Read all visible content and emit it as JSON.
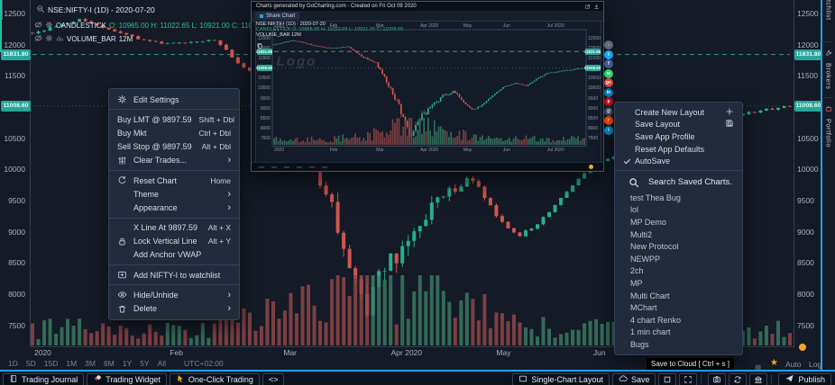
{
  "colors": {
    "accent": "#1e9fe8",
    "green": "#2fbf8f",
    "red": "#d05750",
    "badge_green": "#26a69a",
    "teal_sliver": "#17c3a0",
    "orange": "#f5a623"
  },
  "legend": {
    "title": "NSE:NIFTY-I (1D) - 2020-07-20",
    "series": "CANDLESTICK",
    "ohlc": [
      {
        "k": "O:",
        "v": "10965.00"
      },
      {
        "k": "H:",
        "v": "11022.65"
      },
      {
        "k": "L:",
        "v": "10921.00"
      },
      {
        "k": "C:",
        "v": "11008.60"
      }
    ],
    "volume_label": "VOLUME_BAR",
    "volume_value": "12M"
  },
  "context_menu": {
    "sections": [
      [
        {
          "icon": "gear",
          "label": "Edit Settings"
        }
      ],
      [
        {
          "label": "Buy LMT @ 9897.59",
          "shortcut": "Shift + Dbl"
        },
        {
          "label": "Buy Mkt",
          "shortcut": "Ctrl + Dbl"
        },
        {
          "label": "Sell Stop @ 9897.59",
          "shortcut": "Alt + Dbl"
        },
        {
          "icon": "sliders",
          "label": "Clear Trades...",
          "submenu": true
        }
      ],
      [
        {
          "icon": "refresh",
          "label": "Reset Chart",
          "shortcut": "Home"
        },
        {
          "label": "Theme",
          "submenu": true,
          "indent": true
        },
        {
          "label": "Appearance",
          "submenu": true,
          "indent": true
        }
      ],
      [
        {
          "label": "X Line At 9897.59",
          "shortcut": "Alt + X",
          "indent": true
        },
        {
          "icon": "lock",
          "label": "Lock Vertical Line",
          "shortcut": "Alt + Y"
        },
        {
          "label": "Add Anchor VWAP",
          "indent": true
        }
      ],
      [
        {
          "icon": "card-plus",
          "label": "Add NIFTY-I to watchlist"
        }
      ],
      [
        {
          "icon": "eye",
          "label": "Hide/Unhide",
          "submenu": true
        },
        {
          "icon": "trash",
          "label": "Delete",
          "submenu": true
        }
      ]
    ]
  },
  "layout_menu": {
    "items": [
      {
        "label": "Create New Layout",
        "right_icon": "plus"
      },
      {
        "label": "Save Layout",
        "right_icon": "floppy"
      },
      {
        "label": "Save App Profile"
      },
      {
        "label": "Reset App Defaults"
      },
      {
        "label": "AutoSave",
        "left_icon": "check"
      }
    ],
    "search_label": "Search Saved Charts.",
    "saved_charts": [
      "test Thea Bug",
      "lol",
      "MP Demo",
      "Multi2",
      "New Protocol",
      "NEWPP",
      "2ch",
      "MP",
      "Multi Chart",
      "MChart",
      "4 chart Renko",
      "1 min chart",
      "Bugs"
    ]
  },
  "tooltip": "Save to Cloud [ Ctrl + s ]",
  "popup": {
    "header": "Charts generated by GoCharting.com - Created on Fri Oct 09 2020",
    "tab": "Share Chart",
    "legend_title": "NSE:NIFTY-I (1D) - 2020-07-20",
    "legend_series": "CANDLESTICK O: 10965.00 H: 11022.65 L: 10921.00 C: 11008.60",
    "legend_volume": "VOLUME_BAR 12M",
    "watermark": "Logo"
  },
  "share_icons": [
    {
      "name": "download",
      "color": "#5c6b7a",
      "glyph": "↓"
    },
    {
      "name": "twitter",
      "color": "#1da1f2",
      "glyph": "t"
    },
    {
      "name": "facebook",
      "color": "#3b5998",
      "glyph": "f"
    },
    {
      "name": "whatsapp",
      "color": "#25d366",
      "glyph": "w"
    },
    {
      "name": "google-plus",
      "color": "#db4437",
      "glyph": "g+"
    },
    {
      "name": "linkedin",
      "color": "#0077b5",
      "glyph": "in"
    },
    {
      "name": "pinterest",
      "color": "#bd081c",
      "glyph": "p"
    },
    {
      "name": "email",
      "color": "#35465c",
      "glyph": "@"
    },
    {
      "name": "reddit",
      "color": "#ff4500",
      "glyph": "r"
    },
    {
      "name": "telegram",
      "color": "#0088cc",
      "glyph": "t"
    }
  ],
  "timeframes": {
    "items": [
      "1D",
      "5D",
      "15D",
      "1M",
      "3M",
      "6M",
      "1Y",
      "5Y",
      "All"
    ],
    "timezone": "UTC+02:00",
    "auto_label": "Auto",
    "log_label": "Log"
  },
  "bottom_bar": {
    "left_buttons": [
      {
        "label": "Trading Journal",
        "icon": "journal"
      },
      {
        "label": "Trading Widget",
        "icon": "rocket"
      },
      {
        "label": "One-Click Trading",
        "icon": "pointer"
      },
      {
        "label": "<>",
        "icon": null
      }
    ],
    "right_buttons": [
      {
        "label": "Single-Chart Layout",
        "icon": "layout"
      },
      {
        "label": "Save",
        "icon": "cloud"
      }
    ],
    "icon_buttons": [
      "square",
      "expand",
      "camera",
      "sync",
      "bank"
    ],
    "publish_label": "Publish"
  },
  "sidebar_tabs": [
    {
      "label": "Watchlist",
      "icon": "list"
    },
    {
      "label": "Brokers",
      "icon": "wrench"
    },
    {
      "label": "Portfolio",
      "icon": "briefcase"
    }
  ],
  "chart_data": {
    "type": "candlestick",
    "symbol": "NSE:NIFTY-I",
    "interval": "1D",
    "last_ohlc": {
      "open": 10965.0,
      "high": 11022.65,
      "low": 10921.0,
      "close": 11008.6
    },
    "volume_last": "12M",
    "levels": {
      "alert_line": 11831.8,
      "last_price": 11008.6,
      "trade_level": 9897.59
    },
    "badges": [
      {
        "label": "11831.80",
        "price": 11831.8
      },
      {
        "label": "11008.60",
        "price": 11008.6
      }
    ],
    "y_ticks": [
      12500,
      12000,
      11500,
      11000,
      10500,
      10000,
      9500,
      9000,
      8500,
      8000,
      7500
    ],
    "months": [
      {
        "label": "2020",
        "t": 0
      },
      {
        "label": "Feb",
        "t": 0.179
      },
      {
        "label": "Mar",
        "t": 0.329
      },
      {
        "label": "Apr 2020",
        "t": 0.471
      },
      {
        "label": "May",
        "t": 0.61
      },
      {
        "label": "Jun",
        "t": 0.738
      },
      {
        "label": "Jul 2020",
        "t": 0.88
      }
    ],
    "price_anchors": [
      [
        0,
        12180
      ],
      [
        0.06,
        12390
      ],
      [
        0.1,
        12250
      ],
      [
        0.14,
        12090
      ],
      [
        0.179,
        12000
      ],
      [
        0.24,
        12080
      ],
      [
        0.28,
        11600
      ],
      [
        0.329,
        11250
      ],
      [
        0.36,
        10400
      ],
      [
        0.4,
        9200
      ],
      [
        0.44,
        7650
      ],
      [
        0.46,
        8300
      ],
      [
        0.5,
        8950
      ],
      [
        0.54,
        9550
      ],
      [
        0.58,
        9850
      ],
      [
        0.61,
        9300
      ],
      [
        0.64,
        8900
      ],
      [
        0.67,
        9150
      ],
      [
        0.7,
        9580
      ],
      [
        0.738,
        10050
      ],
      [
        0.78,
        10250
      ],
      [
        0.81,
        10100
      ],
      [
        0.84,
        10400
      ],
      [
        0.88,
        10750
      ],
      [
        0.92,
        10850
      ],
      [
        1,
        11008
      ]
    ],
    "seed": 20200720
  }
}
